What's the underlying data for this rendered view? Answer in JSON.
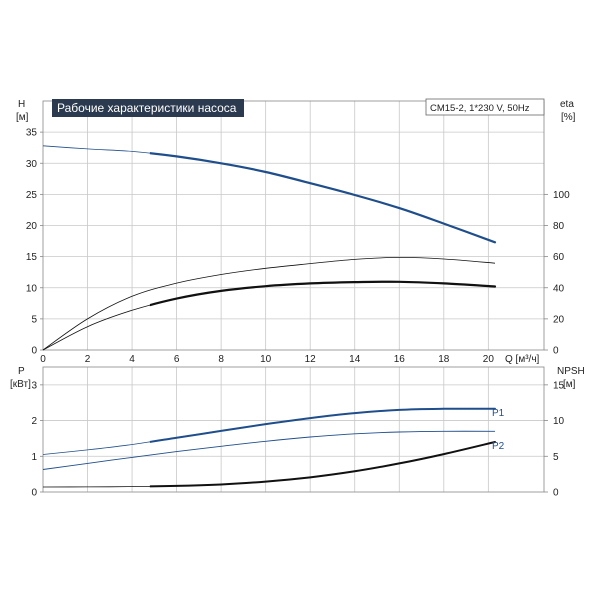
{
  "chart_data": [
    {
      "type": "line",
      "title": "Рабочие характеристики насоса",
      "info": "CM15-2, 1*230 V, 50Hz",
      "xlabel": "Q [м³/ч]",
      "xlim": [
        0,
        22.5
      ],
      "xticks": [
        0,
        2,
        4,
        6,
        8,
        10,
        12,
        14,
        16,
        18,
        20
      ],
      "y_left": {
        "label_top": "H",
        "label_unit": "[м]",
        "ylim": [
          0,
          40
        ],
        "ticks": [
          0,
          5,
          10,
          15,
          20,
          25,
          30,
          35
        ]
      },
      "y_right": {
        "label_top": "eta",
        "label_unit": "[%]",
        "ylim": [
          0,
          160
        ],
        "ticks": [
          0,
          20,
          40,
          60,
          80,
          100
        ]
      },
      "grid": true,
      "series": [
        {
          "axis": "left",
          "color": "#1f4e8c",
          "width": 2.2,
          "duty_from": 4.8,
          "x": [
            0,
            2,
            4,
            6,
            8,
            10,
            12,
            14,
            16,
            18,
            20.3
          ],
          "y": [
            32.8,
            32.3,
            31.9,
            31.1,
            30.0,
            28.6,
            26.8,
            24.9,
            22.8,
            20.3,
            17.3
          ]
        },
        {
          "axis": "right",
          "color": "#111111",
          "width": 0.8,
          "duty_from": 99,
          "x": [
            0,
            2,
            4,
            6,
            8,
            10,
            12,
            14,
            16,
            18,
            20.3
          ],
          "y": [
            0,
            20,
            34.5,
            43,
            48.5,
            52.5,
            55.5,
            58.2,
            59.5,
            58.5,
            55.8
          ]
        },
        {
          "axis": "right",
          "color": "#111111",
          "width": 2.2,
          "duty_from": 4.8,
          "x": [
            0,
            2,
            4,
            6,
            8,
            10,
            12,
            14,
            16,
            18,
            20.3
          ],
          "y": [
            0,
            15,
            25.5,
            33,
            38,
            41,
            42.8,
            43.6,
            43.8,
            42.8,
            40.8
          ]
        }
      ]
    },
    {
      "type": "line",
      "xlim": [
        0,
        22.5
      ],
      "y_left": {
        "label_top": "P",
        "label_unit": "[кВт]",
        "ylim": [
          0,
          3.5
        ],
        "ticks": [
          0,
          1,
          2,
          3
        ]
      },
      "y_right": {
        "label_top": "NPSH",
        "label_unit": "[м]",
        "ylim": [
          0,
          17.5
        ],
        "ticks": [
          0,
          5,
          10,
          15
        ]
      },
      "grid": true,
      "series": [
        {
          "name": "P1",
          "axis": "left",
          "color": "#1f4e8c",
          "width": 2.0,
          "duty_from": 4.8,
          "x": [
            0,
            2,
            4,
            6,
            8,
            10,
            12,
            14,
            16,
            18,
            20.3
          ],
          "y": [
            1.05,
            1.18,
            1.33,
            1.52,
            1.71,
            1.9,
            2.07,
            2.21,
            2.3,
            2.33,
            2.33
          ]
        },
        {
          "name": "P2",
          "axis": "left",
          "color": "#1f4e8c",
          "width": 0.9,
          "duty_from": 99,
          "x": [
            0,
            2,
            4,
            6,
            8,
            10,
            12,
            14,
            16,
            18,
            20.3
          ],
          "y": [
            0.63,
            0.8,
            0.97,
            1.13,
            1.28,
            1.42,
            1.54,
            1.63,
            1.68,
            1.7,
            1.7
          ]
        },
        {
          "axis": "right",
          "color": "#111111",
          "width": 2.0,
          "duty_from": 4.8,
          "x": [
            0,
            2,
            4,
            6,
            8,
            10,
            12,
            14,
            16,
            18,
            20.3
          ],
          "y": [
            0.7,
            0.72,
            0.75,
            0.85,
            1.05,
            1.45,
            2.05,
            2.9,
            4.0,
            5.3,
            7.0
          ]
        }
      ]
    }
  ]
}
